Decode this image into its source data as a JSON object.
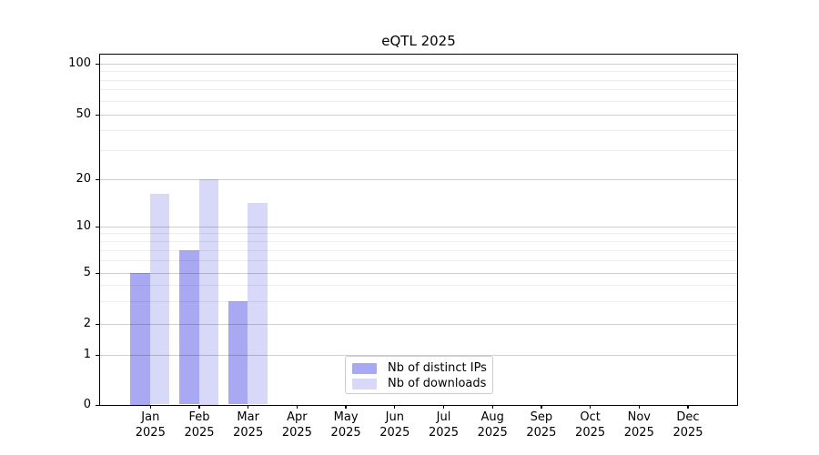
{
  "title": "eQTL 2025",
  "year": "2025",
  "chart_data": {
    "type": "bar",
    "title": "eQTL 2025",
    "categories": [
      "Jan",
      "Feb",
      "Mar",
      "Apr",
      "May",
      "Jun",
      "Jul",
      "Aug",
      "Sep",
      "Oct",
      "Nov",
      "Dec"
    ],
    "x_tick_year": "2025",
    "series": [
      {
        "name": "Nb of distinct IPs",
        "color": "#a9a9f3",
        "values": [
          5,
          7,
          3,
          0,
          0,
          0,
          0,
          0,
          0,
          0,
          0,
          0
        ]
      },
      {
        "name": "Nb of downloads",
        "color": "#d8d8f8",
        "values": [
          16,
          20,
          14,
          0,
          0,
          0,
          0,
          0,
          0,
          0,
          0,
          0
        ]
      }
    ],
    "y_ticks": [
      0,
      1,
      2,
      5,
      10,
      20,
      50,
      100
    ],
    "y_scale": "symlog",
    "ylim": [
      0,
      112
    ],
    "grid": true,
    "legend_position": "lower center",
    "legend_entries": [
      "Nb of distinct IPs",
      "Nb of downloads"
    ]
  }
}
